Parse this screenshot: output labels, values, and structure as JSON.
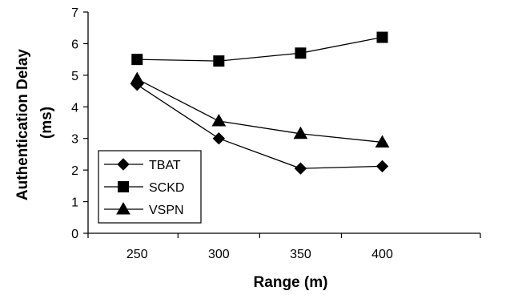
{
  "chart_data": {
    "type": "line",
    "title": "",
    "xlabel": "Range (m)",
    "ylabel_line1": "Authentication Delay",
    "ylabel_line2": "(ms)",
    "categories": [
      "250",
      "300",
      "350",
      "400"
    ],
    "x": [
      250,
      300,
      350,
      400
    ],
    "xlim": [
      220,
      460
    ],
    "ylim": [
      0,
      7
    ],
    "yticks": [
      0,
      1,
      2,
      3,
      4,
      5,
      6,
      7
    ],
    "grid": false,
    "legend_position": "bottom-left",
    "series": [
      {
        "name": "TBAT",
        "marker": "diamond",
        "values": [
          4.7,
          3.0,
          2.05,
          2.12
        ]
      },
      {
        "name": "SCKD",
        "marker": "square",
        "values": [
          5.5,
          5.45,
          5.7,
          6.2
        ]
      },
      {
        "name": "VSPN",
        "marker": "triangle",
        "values": [
          4.88,
          3.55,
          3.15,
          2.88
        ]
      }
    ]
  }
}
